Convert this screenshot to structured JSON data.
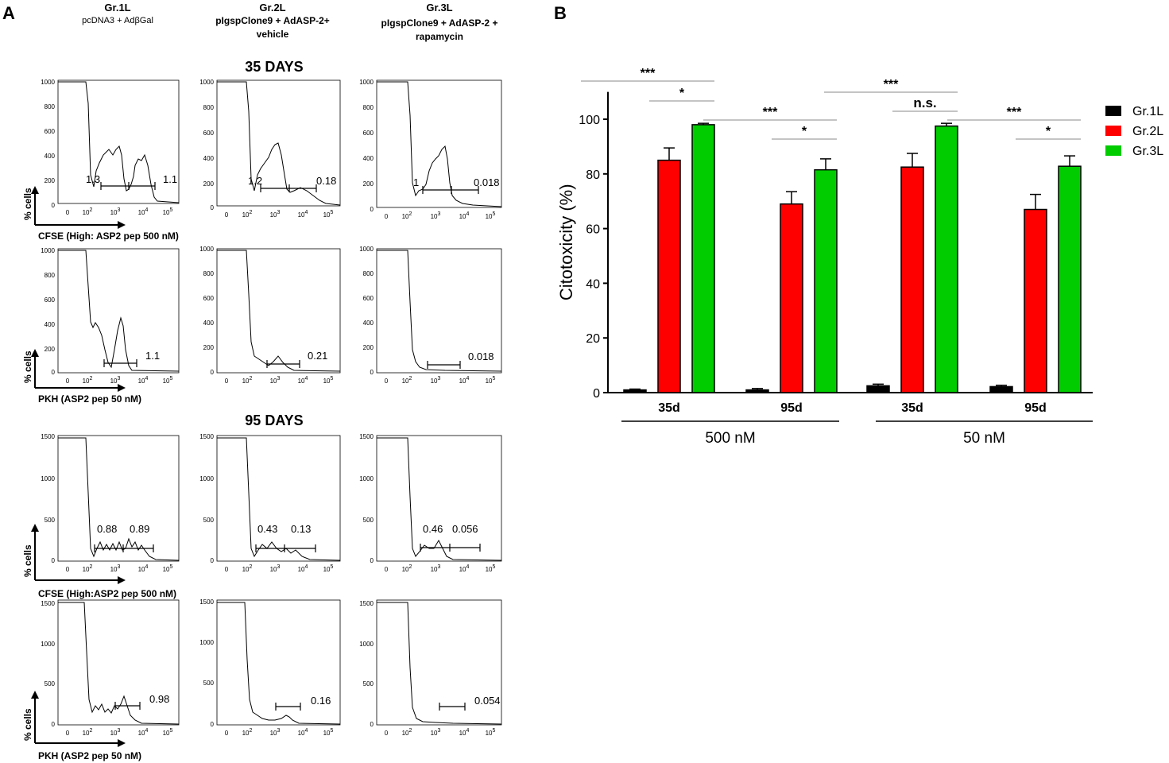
{
  "panel_letters": {
    "a": "A",
    "b": "B"
  },
  "groups": [
    {
      "name": "Gr.1L",
      "desc": [
        "pcDNA3 + AdβGal"
      ]
    },
    {
      "name": "Gr.2L",
      "desc": [
        "pIgspClone9 + AdASP-2+",
        "vehicle"
      ]
    },
    {
      "name": "Gr.3L",
      "desc": [
        "pIgspClone9 + AdASP-2 +",
        "rapamycin"
      ]
    }
  ],
  "timepoints": [
    "35 DAYS",
    "95 DAYS"
  ],
  "y_axis_label": "% cells",
  "x_labels": {
    "cfse": "CFSE (High: ASP2 pep 500 nM)",
    "cfse_short": "CFSE (High:ASP2 pep 500 nM)",
    "pkh": "PKH (ASP2 pep 50 nM)"
  },
  "x_ticks": [
    "0",
    "10^2",
    "10^3",
    "10^4",
    "10^5"
  ],
  "y_ticks_35": [
    "0",
    "200",
    "400",
    "600",
    "800",
    "1000"
  ],
  "y_ticks_95": [
    "0",
    "500",
    "1000",
    "1500"
  ],
  "histogram_values": {
    "d35_cfse": [
      [
        "1.3",
        "1.1"
      ],
      [
        "1.2",
        "0.18"
      ],
      [
        "1",
        "0.018"
      ]
    ],
    "d35_pkh": [
      "1.1",
      "0.21",
      "0.018"
    ],
    "d95_cfse": [
      [
        "0.88",
        "0.89"
      ],
      [
        "0.43",
        "0.13"
      ],
      [
        "0.46",
        "0.056"
      ]
    ],
    "d95_pkh": [
      "0.98",
      "0.16",
      "0.054"
    ]
  },
  "chart_data": {
    "type": "bar",
    "title": "",
    "ylabel": "Citotoxicity (%)",
    "xlabel": "",
    "ylim": [
      0,
      110
    ],
    "yticks": [
      0,
      20,
      40,
      60,
      80,
      100
    ],
    "categories": [
      "35d",
      "95d",
      "35d",
      "95d"
    ],
    "category_groups": [
      {
        "label": "500 nM",
        "categories": [
          0,
          1
        ]
      },
      {
        "label": "50 nM",
        "categories": [
          2,
          3
        ]
      }
    ],
    "series": [
      {
        "name": "Gr.1L",
        "color": "#000000",
        "values": [
          1,
          1,
          2.5,
          2.2
        ],
        "errors": [
          0.3,
          0.5,
          0.6,
          0.5
        ]
      },
      {
        "name": "Gr.2L",
        "color": "#ff0000",
        "values": [
          85,
          69,
          82.5,
          67
        ],
        "errors": [
          4.5,
          4.5,
          5,
          5.5
        ]
      },
      {
        "name": "Gr.3L",
        "color": "#00cc00",
        "values": [
          98,
          81.5,
          97.5,
          82.8
        ],
        "errors": [
          0.5,
          4,
          1,
          3.8
        ]
      }
    ],
    "significance": [
      {
        "category": 0,
        "from": 0,
        "to": 2,
        "label": "***"
      },
      {
        "category": 0,
        "from": 1,
        "to": 2,
        "label": "*"
      },
      {
        "category": 1,
        "from": 0,
        "to": 2,
        "label": "***"
      },
      {
        "category": 1,
        "from": 1,
        "to": 2,
        "label": "*"
      },
      {
        "category": 2,
        "from": 0,
        "to": 2,
        "label": "***"
      },
      {
        "category": 2,
        "from": 1,
        "to": 2,
        "label": "n.s."
      },
      {
        "category": 3,
        "from": 0,
        "to": 2,
        "label": "***"
      },
      {
        "category": 3,
        "from": 1,
        "to": 2,
        "label": "*"
      }
    ],
    "legend": [
      "Gr.1L",
      "Gr.2L",
      "Gr.3L"
    ],
    "legend_position": "top-right"
  }
}
